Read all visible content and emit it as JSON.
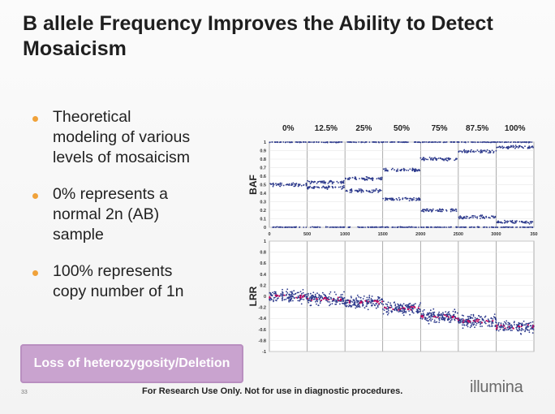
{
  "slide": {
    "title": "B allele Frequency Improves the Ability to Detect Mosaicism",
    "bullets": [
      {
        "text": "Theoretical modeling of various levels of mosaicism"
      },
      {
        "text": "0% represents a normal 2n (AB) sample"
      },
      {
        "text": "100% represents copy number of 1n"
      }
    ],
    "callout": "Loss of heterozygosity/Deletion",
    "slide_number": "33",
    "footer": "For Research Use Only.  Not for use in diagnostic procedures.",
    "logo_text": "illumina",
    "colors": {
      "bullet": "#f0a23a",
      "callout_bg": "#c9a3cf",
      "points": "#2d3a8c",
      "trend": "#c8005a"
    }
  },
  "chart_data": [
    {
      "type": "scatter",
      "title": "",
      "ylabel": "BAF",
      "xlabel": "",
      "x_ticks": [
        "0",
        "500",
        "1000",
        "1500",
        "2000",
        "2500",
        "3000",
        "350"
      ],
      "y_ticks": [
        "0",
        "0.1",
        "0.2",
        "0.3",
        "0.4",
        "0.5",
        "0.6",
        "0.7",
        "0.8",
        "0.9",
        "1"
      ],
      "xlim": [
        0,
        3500
      ],
      "ylim": [
        0,
        1
      ],
      "grid": true,
      "segment_labels": [
        "0%",
        "12.5%",
        "25%",
        "50%",
        "75%",
        "87.5%",
        "100%"
      ],
      "segments": [
        {
          "label": "0%",
          "x_range": [
            0,
            500
          ],
          "bands": [
            0.0,
            0.5,
            1.0
          ]
        },
        {
          "label": "12.5%",
          "x_range": [
            500,
            1000
          ],
          "bands": [
            0.0,
            0.47,
            0.53,
            1.0
          ]
        },
        {
          "label": "25%",
          "x_range": [
            1000,
            1500
          ],
          "bands": [
            0.0,
            0.43,
            0.57,
            1.0
          ]
        },
        {
          "label": "50%",
          "x_range": [
            1500,
            2000
          ],
          "bands": [
            0.0,
            0.33,
            0.67,
            1.0
          ]
        },
        {
          "label": "75%",
          "x_range": [
            2000,
            2500
          ],
          "bands": [
            0.0,
            0.2,
            0.8,
            1.0
          ]
        },
        {
          "label": "87.5%",
          "x_range": [
            2500,
            3000
          ],
          "bands": [
            0.0,
            0.12,
            0.89,
            1.0
          ]
        },
        {
          "label": "100%",
          "x_range": [
            3000,
            3500
          ],
          "bands": [
            0.0,
            0.06,
            0.94,
            1.0
          ]
        }
      ]
    },
    {
      "type": "scatter",
      "title": "",
      "ylabel": "LRR",
      "xlabel": "",
      "y_ticks": [
        "-1",
        "-0.8",
        "-0.6",
        "-0.4",
        "-0.2",
        "0",
        "0.2",
        "0.4",
        "0.6",
        "0.8",
        "1"
      ],
      "xlim": [
        0,
        3500
      ],
      "ylim": [
        -1,
        1
      ],
      "grid": true,
      "trend": [
        {
          "x_range": [
            0,
            500
          ],
          "y": 0.0
        },
        {
          "x_range": [
            500,
            1000
          ],
          "y": -0.05
        },
        {
          "x_range": [
            1000,
            1500
          ],
          "y": -0.1
        },
        {
          "x_range": [
            1500,
            2000
          ],
          "y": -0.22
        },
        {
          "x_range": [
            2000,
            2500
          ],
          "y": -0.37
        },
        {
          "x_range": [
            2500,
            3000
          ],
          "y": -0.45
        },
        {
          "x_range": [
            3000,
            3500
          ],
          "y": -0.55
        }
      ]
    }
  ]
}
